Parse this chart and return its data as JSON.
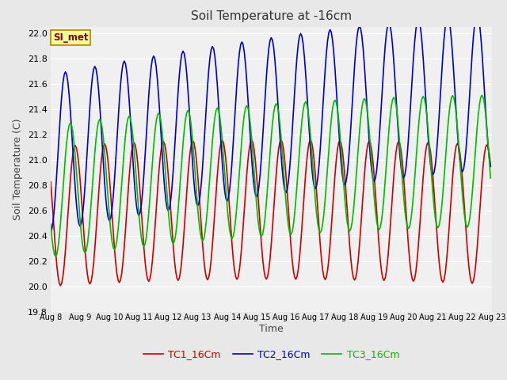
{
  "title": "Soil Temperature at -16cm",
  "xlabel": "Time",
  "ylabel": "Soil Temperature (C)",
  "ylim": [
    19.8,
    22.05
  ],
  "line_colors": {
    "TC1_16Cm": "#cc0000",
    "TC2_16Cm": "#0000cc",
    "TC3_16Cm": "#00bb00"
  },
  "watermark_text": "SI_met",
  "watermark_bg": "#ffff99",
  "watermark_border": "#aa8800",
  "watermark_text_color": "#880000",
  "fig_facecolor": "#e8e8e8",
  "plot_facecolor": "#f0f0f0",
  "grid_color": "#ffffff",
  "yticks": [
    19.8,
    20.0,
    20.2,
    20.4,
    20.6,
    20.8,
    21.0,
    21.2,
    21.4,
    21.6,
    21.8,
    22.0
  ],
  "line_width": 1.2,
  "n_days": 15,
  "start_day": 8,
  "hours_per_day": 24,
  "figsize": [
    6.4,
    4.8
  ],
  "dpi": 100
}
